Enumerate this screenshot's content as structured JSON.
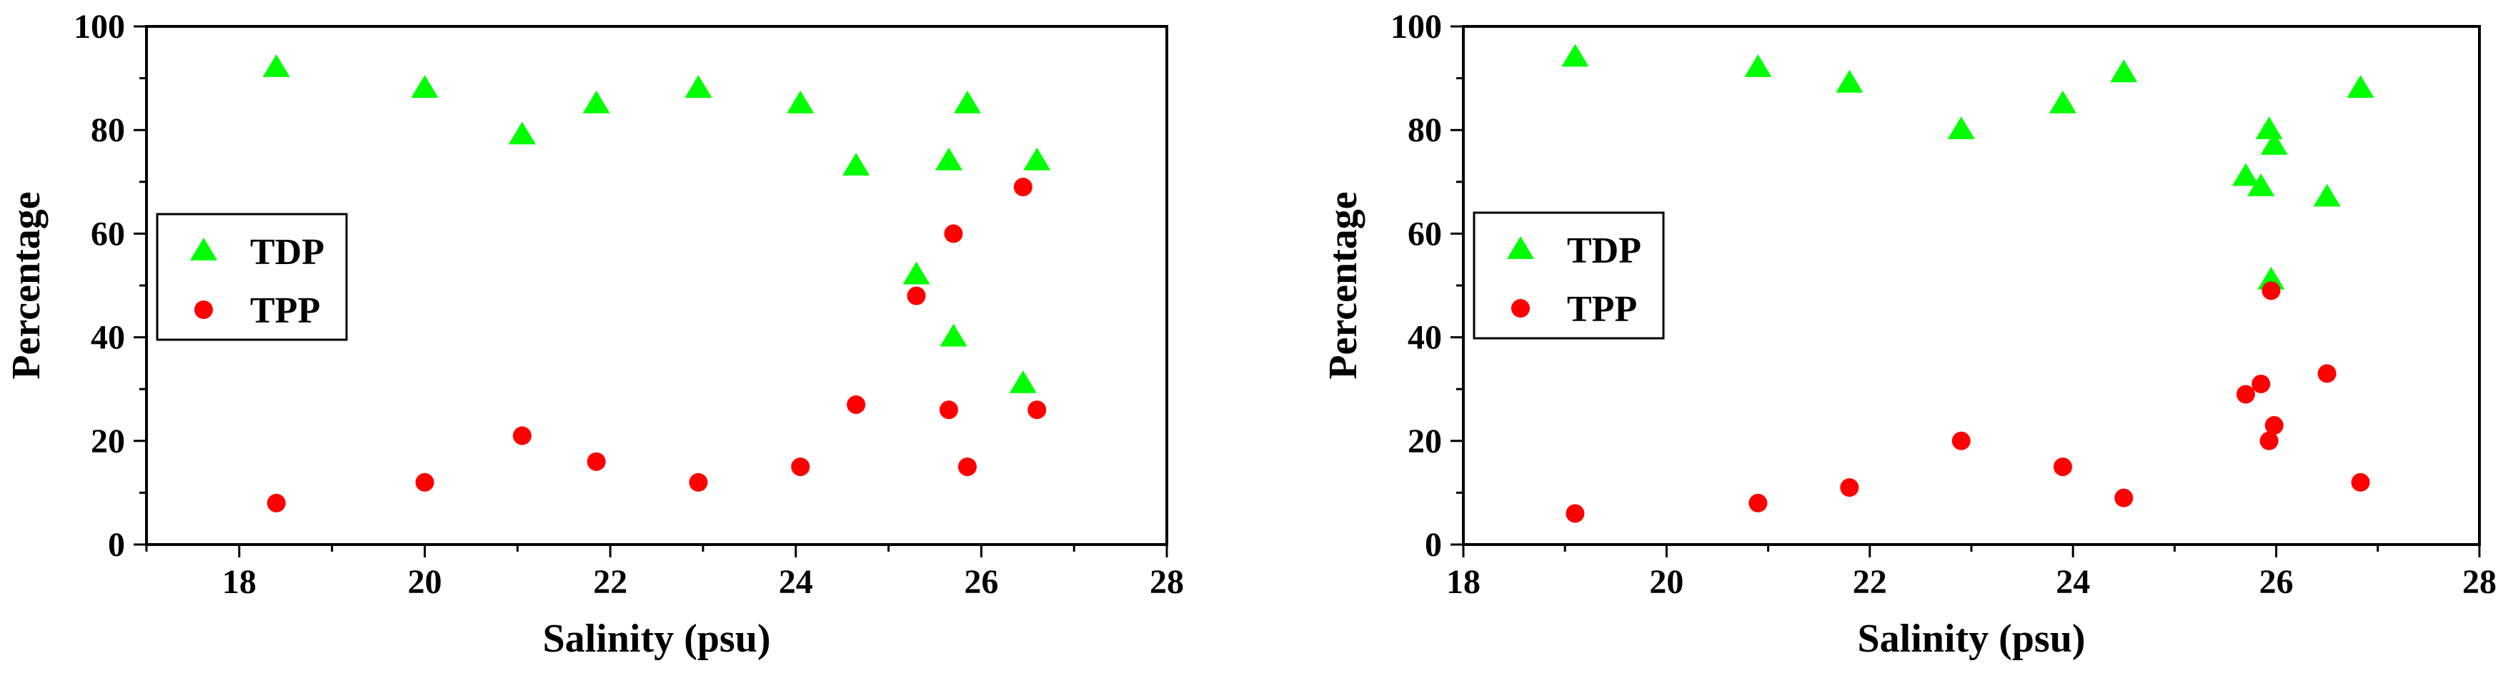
{
  "chart_data": [
    {
      "type": "scatter",
      "title": "",
      "xlabel": "Salinity (psu)",
      "ylabel": "Percentage",
      "xlim": [
        17,
        28
      ],
      "ylim": [
        0,
        100
      ],
      "xticks": [
        18,
        20,
        22,
        24,
        26,
        28
      ],
      "yticks": [
        0,
        20,
        40,
        60,
        80,
        100
      ],
      "grid": false,
      "legend_position": "left",
      "series": [
        {
          "name": "TDP",
          "marker": "triangle",
          "color": "#00ff00",
          "points": [
            [
              18.4,
              92
            ],
            [
              20.0,
              88
            ],
            [
              21.05,
              79
            ],
            [
              21.85,
              85
            ],
            [
              22.95,
              88
            ],
            [
              24.05,
              85
            ],
            [
              24.65,
              73
            ],
            [
              25.3,
              52
            ],
            [
              25.65,
              74
            ],
            [
              25.7,
              40
            ],
            [
              25.85,
              85
            ],
            [
              26.45,
              31
            ],
            [
              26.6,
              74
            ]
          ]
        },
        {
          "name": "TPP",
          "marker": "circle",
          "color": "#ff0000",
          "points": [
            [
              18.4,
              8
            ],
            [
              20.0,
              12
            ],
            [
              21.05,
              21
            ],
            [
              21.85,
              16
            ],
            [
              22.95,
              12
            ],
            [
              24.05,
              15
            ],
            [
              24.65,
              27
            ],
            [
              25.3,
              48
            ],
            [
              25.65,
              26
            ],
            [
              25.7,
              60
            ],
            [
              25.85,
              15
            ],
            [
              26.45,
              69
            ],
            [
              26.6,
              26
            ]
          ]
        }
      ]
    },
    {
      "type": "scatter",
      "title": "",
      "xlabel": "Salinity (psu)",
      "ylabel": "Percentage",
      "xlim": [
        18,
        28
      ],
      "ylim": [
        0,
        100
      ],
      "xticks": [
        18,
        20,
        22,
        24,
        26,
        28
      ],
      "yticks": [
        0,
        20,
        40,
        60,
        80,
        100
      ],
      "grid": false,
      "legend_position": "left",
      "series": [
        {
          "name": "TDP",
          "marker": "triangle",
          "color": "#00ff00",
          "points": [
            [
              19.1,
              94
            ],
            [
              20.9,
              92
            ],
            [
              21.8,
              89
            ],
            [
              22.9,
              80
            ],
            [
              23.9,
              85
            ],
            [
              24.5,
              91
            ],
            [
              25.7,
              71
            ],
            [
              25.85,
              69
            ],
            [
              25.93,
              80
            ],
            [
              25.95,
              51
            ],
            [
              25.98,
              77
            ],
            [
              26.5,
              67
            ],
            [
              26.83,
              88
            ]
          ]
        },
        {
          "name": "TPP",
          "marker": "circle",
          "color": "#ff0000",
          "points": [
            [
              19.1,
              6
            ],
            [
              20.9,
              8
            ],
            [
              21.8,
              11
            ],
            [
              22.9,
              20
            ],
            [
              23.9,
              15
            ],
            [
              24.5,
              9
            ],
            [
              25.7,
              29
            ],
            [
              25.85,
              31
            ],
            [
              25.93,
              20
            ],
            [
              25.95,
              49
            ],
            [
              25.98,
              23
            ],
            [
              26.5,
              33
            ],
            [
              26.83,
              12
            ]
          ]
        }
      ]
    }
  ]
}
